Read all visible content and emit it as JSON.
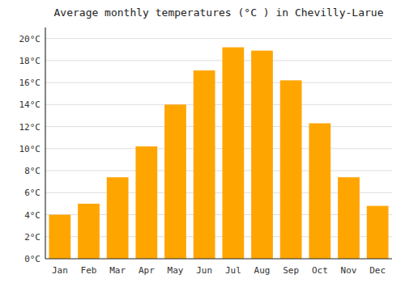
{
  "chart_data": {
    "type": "bar",
    "title": "Average monthly temperatures (°C ) in Chevilly-Larue",
    "categories": [
      "Jan",
      "Feb",
      "Mar",
      "Apr",
      "May",
      "Jun",
      "Jul",
      "Aug",
      "Sep",
      "Oct",
      "Nov",
      "Dec"
    ],
    "values": [
      4.0,
      5.0,
      7.4,
      10.2,
      14.0,
      17.1,
      19.2,
      18.9,
      16.2,
      12.3,
      7.4,
      4.8
    ],
    "color": "#FFA500",
    "ylim": [
      0,
      21
    ],
    "yticks": [
      {
        "value": 0,
        "label": "0°C"
      },
      {
        "value": 2,
        "label": "2°C"
      },
      {
        "value": 4,
        "label": "4°C"
      },
      {
        "value": 6,
        "label": "6°C"
      },
      {
        "value": 8,
        "label": "8°C"
      },
      {
        "value": 10,
        "label": "10°C"
      },
      {
        "value": 12,
        "label": "12°C"
      },
      {
        "value": 14,
        "label": "14°C"
      },
      {
        "value": 16,
        "label": "16°C"
      },
      {
        "value": 18,
        "label": "18°C"
      },
      {
        "value": 20,
        "label": "20°C"
      }
    ],
    "grid": true
  }
}
